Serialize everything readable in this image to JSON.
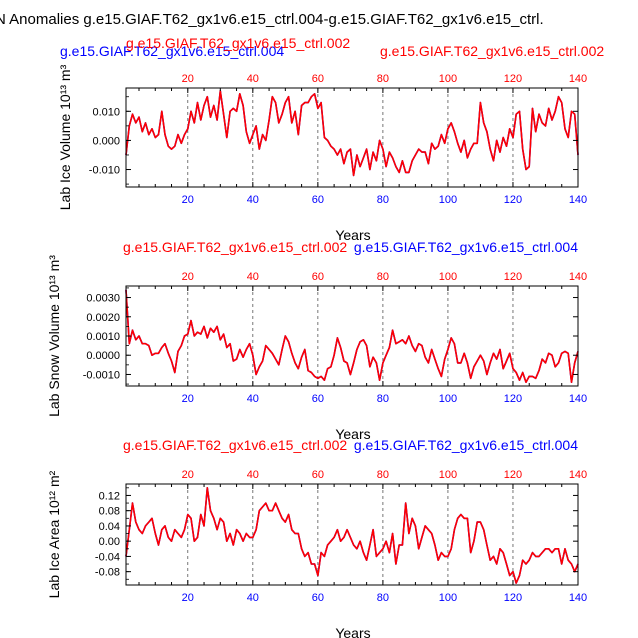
{
  "figure_title": "N Anomalies g.e15.GIAF.T62_gx1v6.e15_ctrl.004-g.e15.GIAF.T62_gx1v6.e15_ctrl.",
  "colors": {
    "series_a": "#0000ff",
    "series_b": "#ff0000",
    "axis": "#000000"
  },
  "chart_data": [
    {
      "type": "line",
      "id": "ice-volume",
      "ylabel": "Lab Ice Volume 10¹³ m³",
      "xlabel": "Years",
      "top_left_title": "g.e15.GIAF.T62_gx1v6.e15_ctrl.004",
      "top_center_title": "g.e15.GIAF.T62_gx1v6.e15_ctrl.002",
      "top_right_title": "g.e15.GIAF.T62_gx1v6.e15_ctrl.002",
      "xlim": [
        1,
        140
      ],
      "ylim": [
        -0.016,
        0.018
      ],
      "xticks": [
        20,
        40,
        60,
        80,
        100,
        120,
        140
      ],
      "yticks": [
        -0.01,
        0.0,
        0.01
      ],
      "ytick_labels": [
        "-0.010",
        "0.000",
        "0.010"
      ],
      "series": [
        {
          "name": "g.e15.GIAF.T62_gx1v6.e15_ctrl.004",
          "values": [
            -0.005,
            0.005,
            0.009,
            0.006,
            0.008,
            0.003,
            0.006,
            0.002,
            0.004,
            0.001,
            0.002,
            0.01,
            0.002,
            -0.002,
            -0.003,
            -0.002,
            0.002,
            -0.001,
            0.002,
            0.004,
            0.01,
            0.006,
            0.013,
            0.007,
            0.012,
            0.015,
            0.008,
            0.012,
            0.007,
            0.017,
            0.009,
            0.001,
            0.01,
            0.011,
            0.01,
            0.016,
            0.012,
            0.003,
            -0.001,
            0.002,
            0.005,
            -0.003,
            0.002,
            0.0,
            0.007,
            0.015,
            0.013,
            0.006,
            0.009,
            0.013,
            0.015,
            0.006,
            0.01,
            0.002,
            0.012,
            0.013,
            0.013,
            0.015,
            0.016,
            0.011,
            0.013,
            0.001,
            0.0,
            -0.002,
            -0.003,
            -0.005,
            -0.003,
            -0.008,
            -0.004,
            -0.003,
            -0.012,
            -0.005,
            -0.009,
            -0.006,
            -0.003,
            -0.01,
            -0.004,
            -0.007,
            0.0,
            -0.003,
            -0.009,
            -0.004,
            -0.006,
            -0.009,
            -0.011,
            -0.007,
            -0.011,
            -0.011,
            -0.007,
            -0.005,
            -0.003,
            -0.004,
            -0.004,
            -0.008,
            -0.001,
            -0.003,
            -0.002,
            0.002,
            -0.001,
            0.004,
            0.006,
            0.003,
            -0.001,
            -0.004,
            0.0,
            -0.006,
            -0.003,
            -0.001,
            -0.001,
            0.013,
            0.006,
            0.003,
            -0.003,
            -0.007,
            0.0,
            -0.004,
            0.001,
            -0.002,
            0.004,
            0.001,
            0.009,
            0.01,
            -0.003,
            -0.01,
            -0.009,
            0.011,
            0.003,
            0.009,
            0.006,
            0.005,
            0.011,
            0.007,
            0.01,
            0.015,
            0.013,
            0.004,
            0.001,
            0.01,
            0.009,
            -0.005
          ]
        },
        {
          "name": "g.e15.GIAF.T62_gx1v6.e15_ctrl.002",
          "values": [
            -0.005,
            0.005,
            0.009,
            0.006,
            0.008,
            0.003,
            0.006,
            0.002,
            0.004,
            0.001,
            0.002,
            0.01,
            0.002,
            -0.002,
            -0.003,
            -0.002,
            0.002,
            -0.001,
            0.002,
            0.004,
            0.01,
            0.006,
            0.013,
            0.007,
            0.012,
            0.015,
            0.008,
            0.012,
            0.007,
            0.017,
            0.009,
            0.001,
            0.01,
            0.011,
            0.01,
            0.016,
            0.012,
            0.003,
            -0.001,
            0.002,
            0.005,
            -0.003,
            0.002,
            0.0,
            0.007,
            0.015,
            0.013,
            0.006,
            0.009,
            0.013,
            0.015,
            0.006,
            0.01,
            0.002,
            0.012,
            0.013,
            0.013,
            0.015,
            0.016,
            0.011,
            0.013,
            0.001,
            0.0,
            -0.002,
            -0.003,
            -0.005,
            -0.003,
            -0.008,
            -0.004,
            -0.003,
            -0.012,
            -0.005,
            -0.009,
            -0.006,
            -0.003,
            -0.01,
            -0.004,
            -0.007,
            0.0,
            -0.003,
            -0.009,
            -0.004,
            -0.006,
            -0.009,
            -0.011,
            -0.007,
            -0.011,
            -0.011,
            -0.007,
            -0.005,
            -0.003,
            -0.004,
            -0.004,
            -0.008,
            -0.001,
            -0.003,
            -0.002,
            0.002,
            -0.001,
            0.004,
            0.006,
            0.003,
            -0.001,
            -0.004,
            0.0,
            -0.006,
            -0.003,
            -0.001,
            -0.001,
            0.013,
            0.006,
            0.003,
            -0.003,
            -0.007,
            0.0,
            -0.004,
            0.001,
            -0.002,
            0.004,
            0.001,
            0.009,
            0.01,
            -0.003,
            -0.01,
            -0.009,
            0.011,
            0.003,
            0.009,
            0.006,
            0.005,
            0.011,
            0.007,
            0.01,
            0.015,
            0.013,
            0.004,
            0.001,
            0.01,
            0.009,
            -0.005
          ]
        }
      ]
    },
    {
      "type": "line",
      "id": "snow-volume",
      "ylabel": "Lab Snow Volume 10¹³ m³",
      "xlabel": "Years",
      "top_left_title": "g.e15.GIAF.T62_gx1v6.e15_ctrl.002",
      "top_right_title": "g.e15.GIAF.T62_gx1v6.e15_ctrl.004",
      "xlim": [
        1,
        140
      ],
      "ylim": [
        -0.0016,
        0.0036
      ],
      "xticks": [
        20,
        40,
        60,
        80,
        100,
        120,
        140
      ],
      "yticks": [
        -0.001,
        0.0,
        0.001,
        0.002,
        0.003
      ],
      "ytick_labels": [
        "-0.0010",
        "0.0000",
        "0.0010",
        "0.0020",
        "0.0030"
      ],
      "series": [
        {
          "name": "g.e15.GIAF.T62_gx1v6.e15_ctrl.004",
          "values": [
            0.0034,
            0.0006,
            0.0013,
            0.0008,
            0.001,
            0.0006,
            0.0006,
            0.0005,
            0.0,
            0.0001,
            0.0001,
            0.0004,
            0.0006,
            0.0001,
            -0.0003,
            -0.0009,
            0.0002,
            0.0005,
            0.001,
            0.0011,
            0.0018,
            0.001,
            0.0012,
            0.0011,
            0.0015,
            0.0009,
            0.0014,
            0.0012,
            0.0015,
            0.0008,
            0.0011,
            0.0004,
            0.0006,
            -0.0003,
            -0.0002,
            0.0003,
            -0.0001,
            0.0003,
            0.0006,
            0.0,
            -0.001,
            -0.0006,
            -0.0003,
            0.0005,
            0.0003,
            0.0001,
            -0.0002,
            -0.0005,
            0.0003,
            0.001,
            0.0007,
            0.0001,
            -0.0004,
            -0.0007,
            -0.0001,
            0.0003,
            -0.0008,
            -0.0009,
            -0.0011,
            -0.0012,
            -0.0011,
            -0.0013,
            -0.0007,
            -0.0006,
            0.0,
            0.0009,
            0.0004,
            -0.0003,
            -0.0004,
            -0.001,
            -0.0004,
            0.0003,
            0.0007,
            0.0008,
            0.0005,
            -0.0006,
            -0.0001,
            -0.0004,
            -0.0013,
            -0.0004,
            0.0,
            0.0004,
            0.0013,
            0.0006,
            0.0007,
            0.0008,
            0.0006,
            0.001,
            0.0005,
            0.0002,
            0.0006,
            0.0005,
            -0.0001,
            -0.0004,
            0.0003,
            -0.0002,
            -0.0007,
            -0.0011,
            -0.0002,
            0.0003,
            0.0009,
            0.0006,
            -0.0004,
            -0.0004,
            0.0001,
            -0.0004,
            -0.0012,
            -0.0006,
            -0.0003,
            0.0,
            -0.0003,
            -0.001,
            -0.0004,
            0.0001,
            -0.0002,
            0.0003,
            -0.0007,
            -0.0003,
            0.0001,
            -0.0007,
            -0.0009,
            -0.0013,
            -0.0009,
            -0.0014,
            -0.0011,
            -0.0011,
            -0.0012,
            -0.0008,
            -0.0002,
            -0.0004,
            0.0001,
            0.0,
            -0.0006,
            -0.0004,
            0.0001,
            0.0002,
            0.0001,
            -0.0014,
            -0.0004,
            0.0002
          ]
        },
        {
          "name": "g.e15.GIAF.T62_gx1v6.e15_ctrl.002",
          "values": [
            0.0034,
            0.0006,
            0.0013,
            0.0008,
            0.001,
            0.0006,
            0.0006,
            0.0005,
            0.0,
            0.0001,
            0.0001,
            0.0004,
            0.0006,
            0.0001,
            -0.0003,
            -0.0009,
            0.0002,
            0.0005,
            0.001,
            0.0011,
            0.0018,
            0.001,
            0.0012,
            0.0011,
            0.0015,
            0.0009,
            0.0014,
            0.0012,
            0.0015,
            0.0008,
            0.0011,
            0.0004,
            0.0006,
            -0.0003,
            -0.0002,
            0.0003,
            -0.0001,
            0.0003,
            0.0006,
            0.0,
            -0.001,
            -0.0006,
            -0.0003,
            0.0005,
            0.0003,
            0.0001,
            -0.0002,
            -0.0005,
            0.0003,
            0.001,
            0.0007,
            0.0001,
            -0.0004,
            -0.0007,
            -0.0001,
            0.0003,
            -0.0008,
            -0.0009,
            -0.0011,
            -0.0012,
            -0.0011,
            -0.0013,
            -0.0007,
            -0.0006,
            0.0,
            0.0009,
            0.0004,
            -0.0003,
            -0.0004,
            -0.001,
            -0.0004,
            0.0003,
            0.0007,
            0.0008,
            0.0005,
            -0.0006,
            -0.0001,
            -0.0004,
            -0.0013,
            -0.0004,
            0.0,
            0.0004,
            0.0013,
            0.0006,
            0.0007,
            0.0008,
            0.0006,
            0.001,
            0.0005,
            0.0002,
            0.0006,
            0.0005,
            -0.0001,
            -0.0004,
            0.0003,
            -0.0002,
            -0.0007,
            -0.0011,
            -0.0002,
            0.0003,
            0.0009,
            0.0006,
            -0.0004,
            -0.0004,
            0.0001,
            -0.0004,
            -0.0012,
            -0.0006,
            -0.0003,
            0.0,
            -0.0003,
            -0.001,
            -0.0004,
            0.0001,
            -0.0002,
            0.0003,
            -0.0007,
            -0.0003,
            0.0001,
            -0.0007,
            -0.0009,
            -0.0013,
            -0.0009,
            -0.0014,
            -0.0011,
            -0.0011,
            -0.0012,
            -0.0008,
            -0.0002,
            -0.0004,
            0.0001,
            0.0,
            -0.0006,
            -0.0004,
            0.0001,
            0.0002,
            0.0001,
            -0.0014,
            -0.0004,
            0.0002
          ]
        }
      ]
    },
    {
      "type": "line",
      "id": "ice-area",
      "ylabel": "Lab Ice Area 10¹² m²",
      "xlabel": "Years",
      "top_left_title": "g.e15.GIAF.T62_gx1v6.e15_ctrl.002",
      "top_right_title": "g.e15.GIAF.T62_gx1v6.e15_ctrl.004",
      "xlim": [
        1,
        140
      ],
      "ylim": [
        -0.115,
        0.15
      ],
      "xticks": [
        20,
        40,
        60,
        80,
        100,
        120,
        140
      ],
      "yticks": [
        -0.08,
        -0.04,
        0.0,
        0.04,
        0.08,
        0.12
      ],
      "ytick_labels": [
        "-0.08",
        "-0.04",
        "0.00",
        "0.04",
        "0.08",
        "0.12"
      ],
      "series": [
        {
          "name": "g.e15.GIAF.T62_gx1v6.e15_ctrl.004",
          "values": [
            -0.04,
            0.03,
            0.1,
            0.05,
            0.03,
            0.02,
            0.04,
            0.05,
            0.06,
            0.02,
            -0.01,
            0.03,
            0.04,
            0.01,
            0.0,
            0.03,
            0.02,
            0.01,
            0.03,
            0.07,
            0.06,
            0.0,
            0.01,
            0.07,
            0.04,
            0.14,
            0.08,
            0.06,
            0.03,
            0.06,
            0.05,
            0.0,
            0.02,
            -0.01,
            0.03,
            0.02,
            0.0,
            0.02,
            0.01,
            0.01,
            0.03,
            0.08,
            0.09,
            0.1,
            0.08,
            0.08,
            0.1,
            0.08,
            0.06,
            0.05,
            0.07,
            0.03,
            0.02,
            0.02,
            -0.02,
            -0.04,
            -0.03,
            -0.06,
            -0.06,
            -0.09,
            -0.03,
            -0.04,
            -0.01,
            0.0,
            0.01,
            0.03,
            0.0,
            0.01,
            0.03,
            0.01,
            -0.01,
            -0.02,
            0.0,
            -0.03,
            -0.05,
            -0.01,
            0.03,
            -0.04,
            -0.03,
            -0.02,
            0.0,
            -0.03,
            0.02,
            -0.06,
            -0.01,
            -0.01,
            0.1,
            0.02,
            0.06,
            0.04,
            -0.02,
            0.01,
            0.04,
            0.03,
            0.02,
            -0.01,
            -0.05,
            -0.03,
            -0.04,
            -0.04,
            -0.02,
            0.03,
            0.06,
            0.07,
            0.06,
            0.06,
            -0.03,
            0.0,
            0.05,
            0.05,
            0.03,
            -0.01,
            -0.05,
            -0.04,
            -0.06,
            -0.02,
            -0.03,
            -0.06,
            -0.09,
            -0.08,
            -0.11,
            -0.09,
            -0.05,
            -0.06,
            -0.05,
            -0.03,
            -0.04,
            -0.04,
            -0.03,
            -0.02,
            -0.02,
            -0.03,
            -0.02,
            -0.02,
            -0.06,
            -0.02,
            -0.05,
            -0.06,
            -0.08,
            -0.06
          ]
        },
        {
          "name": "g.e15.GIAF.T62_gx1v6.e15_ctrl.002",
          "values": [
            -0.04,
            0.03,
            0.1,
            0.05,
            0.03,
            0.02,
            0.04,
            0.05,
            0.06,
            0.02,
            -0.01,
            0.03,
            0.04,
            0.01,
            0.0,
            0.03,
            0.02,
            0.01,
            0.03,
            0.07,
            0.06,
            0.0,
            0.01,
            0.07,
            0.04,
            0.14,
            0.08,
            0.06,
            0.03,
            0.06,
            0.05,
            0.0,
            0.02,
            -0.01,
            0.03,
            0.02,
            0.0,
            0.02,
            0.01,
            0.01,
            0.03,
            0.08,
            0.09,
            0.1,
            0.08,
            0.08,
            0.1,
            0.08,
            0.06,
            0.05,
            0.07,
            0.03,
            0.02,
            0.02,
            -0.02,
            -0.04,
            -0.03,
            -0.06,
            -0.06,
            -0.09,
            -0.03,
            -0.04,
            -0.01,
            0.0,
            0.01,
            0.03,
            0.0,
            0.01,
            0.03,
            0.01,
            -0.01,
            -0.02,
            0.0,
            -0.03,
            -0.05,
            -0.01,
            0.03,
            -0.04,
            -0.03,
            -0.02,
            0.0,
            -0.03,
            0.02,
            -0.06,
            -0.01,
            -0.01,
            0.1,
            0.02,
            0.06,
            0.04,
            -0.02,
            0.01,
            0.04,
            0.03,
            0.02,
            -0.01,
            -0.05,
            -0.03,
            -0.04,
            -0.04,
            -0.02,
            0.03,
            0.06,
            0.07,
            0.06,
            0.06,
            -0.03,
            0.0,
            0.05,
            0.05,
            0.03,
            -0.01,
            -0.05,
            -0.04,
            -0.06,
            -0.02,
            -0.03,
            -0.06,
            -0.09,
            -0.08,
            -0.11,
            -0.09,
            -0.05,
            -0.06,
            -0.05,
            -0.03,
            -0.04,
            -0.04,
            -0.03,
            -0.02,
            -0.02,
            -0.03,
            -0.02,
            -0.02,
            -0.06,
            -0.02,
            -0.05,
            -0.06,
            -0.08,
            -0.06
          ]
        }
      ]
    }
  ]
}
